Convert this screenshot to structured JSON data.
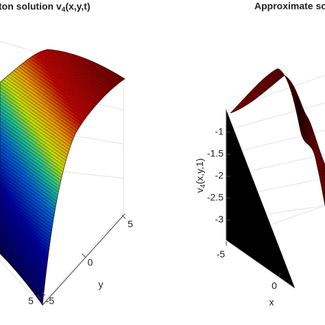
{
  "chart_data": [
    {
      "type": "surface",
      "title": [
        "ton solution v",
        "4",
        "(x,y,t)"
      ],
      "ylabel": "y",
      "ylim": [
        -5,
        5
      ],
      "yticks": [
        -5,
        0,
        5
      ],
      "xticks": [
        5
      ]
    },
    {
      "type": "surface",
      "title": "Approximate so",
      "zlabel": [
        "v",
        "4",
        "(x,y,1)"
      ],
      "xlabel": "x",
      "zlim": [
        -3,
        -1
      ],
      "zticks": [
        -3,
        -2.5,
        -2,
        -1.5,
        -1
      ],
      "xlim": [
        -5,
        0
      ],
      "xticks": [
        -5,
        0
      ]
    }
  ]
}
